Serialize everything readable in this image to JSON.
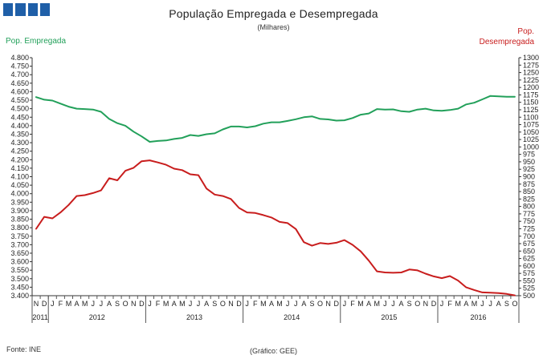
{
  "title": "População Empregada e Desempregada",
  "subtitle": "(Milhares)",
  "left_axis_label": "Pop. Empregada",
  "right_axis_label_line1": "Pop.",
  "right_axis_label_line2": "Desempregada",
  "source": "Fonte: INE",
  "credit": "(Gráfico: GEE)",
  "colors": {
    "employed": "#22a05a",
    "unemployed": "#c81d1d",
    "logo": "#1f5fa8"
  },
  "chart_data": {
    "type": "line",
    "month_labels": [
      "N",
      "D",
      "J",
      "F",
      "M",
      "A",
      "M",
      "J",
      "J",
      "A",
      "S",
      "O",
      "N",
      "D",
      "J",
      "F",
      "M",
      "A",
      "M",
      "J",
      "J",
      "A",
      "S",
      "O",
      "N",
      "D",
      "J",
      "F",
      "M",
      "A",
      "M",
      "J",
      "J",
      "A",
      "S",
      "O",
      "N",
      "D",
      "J",
      "F",
      "M",
      "A",
      "M",
      "J",
      "J",
      "A",
      "S",
      "O",
      "N",
      "D",
      "J",
      "F",
      "M",
      "A",
      "M",
      "J",
      "J",
      "A",
      "S",
      "O"
    ],
    "year_labels": [
      {
        "label": "2011",
        "start": 0,
        "end": 1
      },
      {
        "label": "2012",
        "start": 2,
        "end": 13
      },
      {
        "label": "2013",
        "start": 14,
        "end": 25
      },
      {
        "label": "2014",
        "start": 26,
        "end": 37
      },
      {
        "label": "2015",
        "start": 38,
        "end": 49
      },
      {
        "label": "2016",
        "start": 50,
        "end": 59
      }
    ],
    "y_left": {
      "min": 3400,
      "max": 4800,
      "step": 50,
      "tick_labels": [
        "3.400",
        "3.450",
        "3.500",
        "3.550",
        "3.600",
        "3.650",
        "3.700",
        "3.750",
        "3.800",
        "3.850",
        "3.900",
        "3.950",
        "4.000",
        "4.050",
        "4.100",
        "4.150",
        "4.200",
        "4.250",
        "4.300",
        "4.350",
        "4.400",
        "4.450",
        "4.500",
        "4.550",
        "4.600",
        "4.650",
        "4.700",
        "4.750",
        "4.800"
      ]
    },
    "y_right": {
      "min": 500,
      "max": 1300,
      "step": 25,
      "tick_labels": [
        "500",
        "525",
        "550",
        "575",
        "600",
        "625",
        "650",
        "675",
        "700",
        "725",
        "750",
        "775",
        "800",
        "825",
        "850",
        "875",
        "900",
        "925",
        "950",
        "975",
        "1000",
        "1025",
        "1050",
        "1075",
        "1100",
        "1125",
        "1150",
        "1175",
        "1200",
        "1225",
        "1250",
        "1275",
        "1300"
      ]
    },
    "series": [
      {
        "name": "Pop. Empregada",
        "axis": "left",
        "values": [
          4568,
          4553,
          4548,
          4530,
          4512,
          4500,
          4498,
          4495,
          4482,
          4440,
          4415,
          4400,
          4365,
          4337,
          4305,
          4310,
          4313,
          4322,
          4328,
          4345,
          4340,
          4350,
          4355,
          4378,
          4395,
          4395,
          4390,
          4397,
          4412,
          4420,
          4420,
          4428,
          4438,
          4450,
          4455,
          4440,
          4437,
          4430,
          4432,
          4445,
          4465,
          4472,
          4498,
          4495,
          4496,
          4485,
          4482,
          4495,
          4500,
          4490,
          4488,
          4492,
          4500,
          4525,
          4535,
          4555,
          4575,
          4573,
          4570,
          4570
        ]
      },
      {
        "name": "Pop. Desempregada",
        "axis": "right",
        "values": [
          725,
          765,
          760,
          780,
          805,
          835,
          838,
          845,
          854,
          895,
          888,
          920,
          930,
          952,
          955,
          948,
          940,
          927,
          922,
          908,
          905,
          860,
          840,
          835,
          825,
          795,
          780,
          778,
          771,
          763,
          748,
          744,
          724,
          680,
          668,
          677,
          674,
          678,
          687,
          671,
          649,
          618,
          582,
          578,
          577,
          578,
          588,
          585,
          574,
          565,
          559,
          566,
          551,
          528,
          519,
          511,
          510,
          509,
          506,
          501
        ]
      }
    ]
  }
}
